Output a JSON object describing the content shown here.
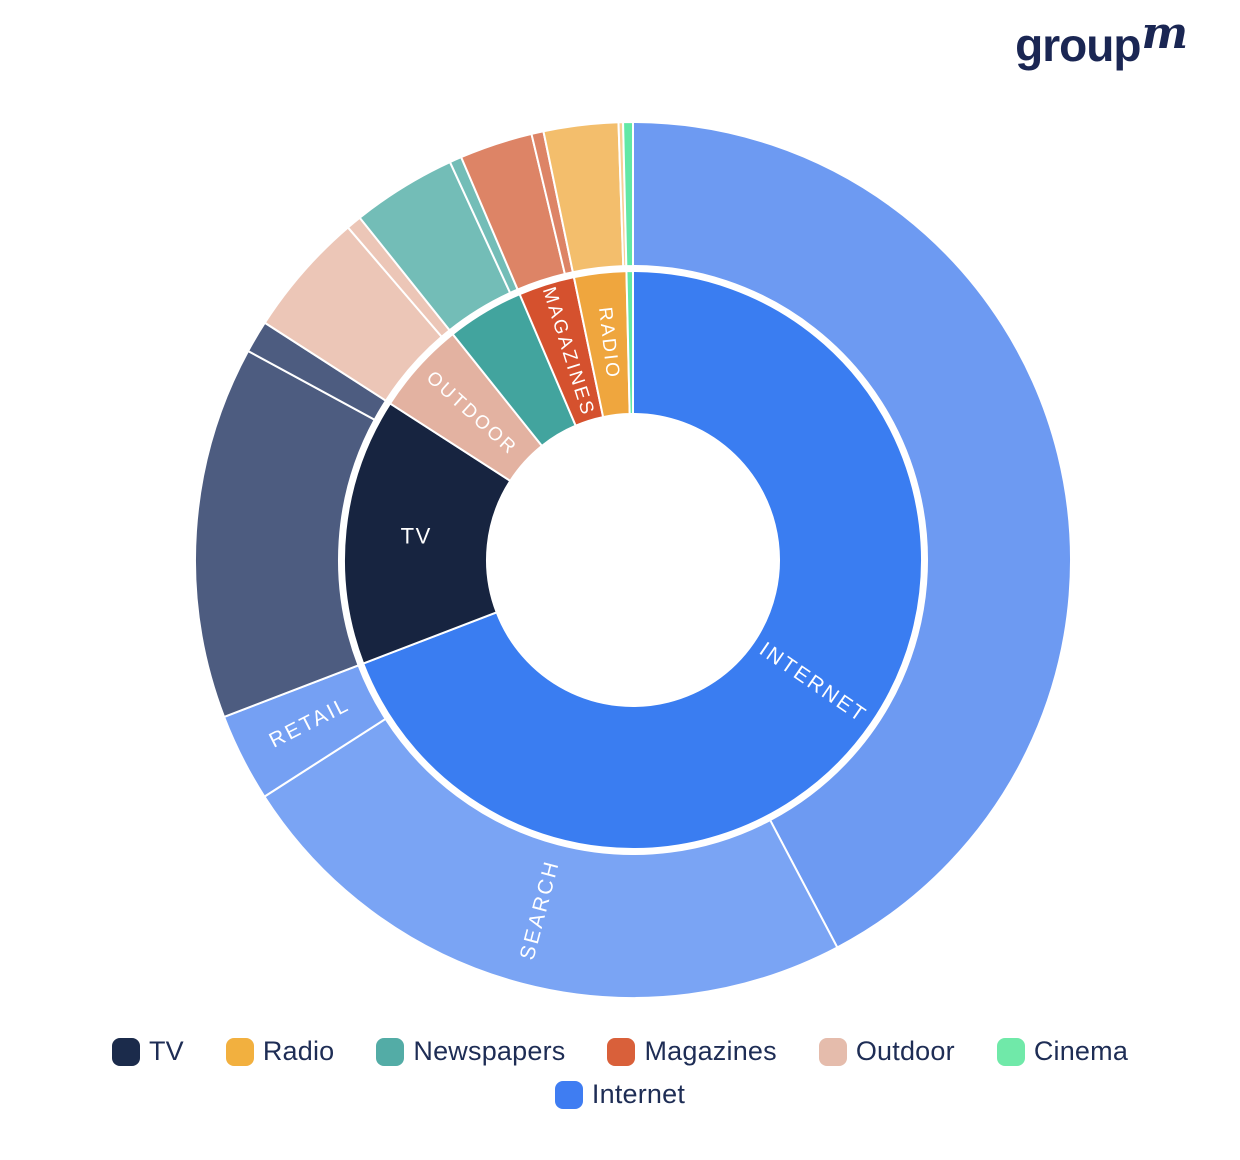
{
  "logo": {
    "text": "group",
    "superscript": "m",
    "color": "#1A2653"
  },
  "background_color": "#FFFFFF",
  "chart_data": {
    "type": "pie",
    "subtype": "sunburst-donut",
    "title": "",
    "units": "share of total ad spend, % (estimated from arc angles; no numeric labels shown)",
    "legend_position": "bottom",
    "rings": [
      "inner: media category",
      "outer: sub-segments"
    ],
    "categories": [
      {
        "name": "Internet",
        "label": "INTERNET",
        "label_style": "tangential",
        "color": "#3A7DF1",
        "start_deg": 0,
        "end_deg": 249.0,
        "share_pct_est": 69.2,
        "children": [
          {
            "name": "Internet - other",
            "label": "",
            "color": "#6D9AF2",
            "start_deg": 0,
            "end_deg": 152.2,
            "share_pct_est": 42.3
          },
          {
            "name": "Search",
            "label": "SEARCH",
            "label_style": "radial",
            "color": "#7AA4F4",
            "start_deg": 152.2,
            "end_deg": 237.3,
            "share_pct_est": 23.6
          },
          {
            "name": "Retail",
            "label": "RETAIL",
            "label_style": "radial",
            "color": "#75A0F3",
            "start_deg": 237.3,
            "end_deg": 249.0,
            "share_pct_est": 3.3
          }
        ]
      },
      {
        "name": "TV",
        "label": "TV",
        "label_style": "horizontal",
        "color": "#172440",
        "start_deg": 249.0,
        "end_deg": 302.8,
        "share_pct_est": 14.9,
        "children": [
          {
            "name": "TV - main",
            "label": "",
            "color": "#4D5C80",
            "start_deg": 249.0,
            "end_deg": 298.5,
            "share_pct_est": 13.7
          },
          {
            "name": "TV - sliver",
            "label": "",
            "color": "#4D5C80",
            "start_deg": 298.5,
            "end_deg": 302.8,
            "share_pct_est": 1.2
          }
        ]
      },
      {
        "name": "Outdoor",
        "label": "OUTDOOR",
        "label_style": "radial",
        "color": "#E3B2A1",
        "start_deg": 302.8,
        "end_deg": 321.4,
        "share_pct_est": 5.2,
        "children": [
          {
            "name": "Outdoor - main",
            "label": "",
            "color": "#ECC6B7",
            "start_deg": 302.8,
            "end_deg": 319.4,
            "share_pct_est": 4.6
          },
          {
            "name": "Outdoor - sliver",
            "label": "",
            "color": "#ECC6B7",
            "start_deg": 319.4,
            "end_deg": 321.4,
            "share_pct_est": 0.6
          }
        ]
      },
      {
        "name": "Newspapers",
        "label": "",
        "label_style": "",
        "color": "#42A49E",
        "start_deg": 321.4,
        "end_deg": 336.9,
        "share_pct_est": 4.3,
        "children": [
          {
            "name": "Newspapers - main",
            "label": "",
            "color": "#73BDB7",
            "start_deg": 321.4,
            "end_deg": 335.3,
            "share_pct_est": 3.9
          },
          {
            "name": "Newspapers - sliver",
            "label": "",
            "color": "#73BDB7",
            "start_deg": 335.3,
            "end_deg": 336.9,
            "share_pct_est": 0.4
          }
        ]
      },
      {
        "name": "Magazines",
        "label": "MAGAZINES",
        "label_style": "radial",
        "color": "#D5512E",
        "start_deg": 336.9,
        "end_deg": 348.2,
        "share_pct_est": 3.1,
        "children": [
          {
            "name": "Magazines - main",
            "label": "",
            "color": "#DD8466",
            "start_deg": 336.9,
            "end_deg": 346.6,
            "share_pct_est": 2.7
          },
          {
            "name": "Magazines - sliver",
            "label": "",
            "color": "#DD8466",
            "start_deg": 346.6,
            "end_deg": 348.2,
            "share_pct_est": 0.4
          }
        ]
      },
      {
        "name": "Radio",
        "label": "RADIO",
        "label_style": "radial",
        "color": "#EFA63E",
        "start_deg": 348.2,
        "end_deg": 358.7,
        "share_pct_est": 2.9,
        "children": [
          {
            "name": "Radio - main",
            "label": "",
            "color": "#F3BE6C",
            "start_deg": 348.2,
            "end_deg": 358.1,
            "share_pct_est": 2.75
          },
          {
            "name": "Radio - sliver",
            "label": "",
            "color": "#F7D096",
            "start_deg": 358.1,
            "end_deg": 358.7,
            "share_pct_est": 0.15
          }
        ]
      },
      {
        "name": "Cinema",
        "label": "",
        "label_style": "",
        "color": "#62E8A6",
        "start_deg": 358.7,
        "end_deg": 360,
        "share_pct_est": 0.4,
        "children": [
          {
            "name": "Cinema - outer",
            "label": "",
            "color": "#62E8A6",
            "start_deg": 358.7,
            "end_deg": 360,
            "share_pct_est": 0.4
          }
        ]
      }
    ]
  },
  "legend": {
    "rows": [
      [
        {
          "label": "TV",
          "color": "#1B2B4B"
        },
        {
          "label": "Radio",
          "color": "#F2B03F"
        },
        {
          "label": "Newspapers",
          "color": "#53ACA6"
        },
        {
          "label": "Magazines",
          "color": "#D9603A"
        },
        {
          "label": "Outdoor",
          "color": "#E5BCAC"
        },
        {
          "label": "Cinema",
          "color": "#70E9A9"
        }
      ],
      [
        {
          "label": "Internet",
          "color": "#3F7DF2"
        }
      ]
    ]
  }
}
